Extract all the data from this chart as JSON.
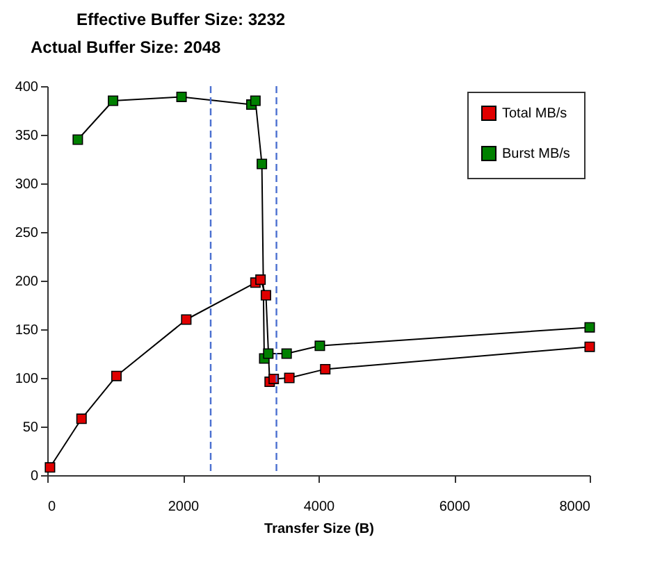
{
  "chart_data": {
    "type": "line",
    "xlabel": "Transfer Size (B)",
    "annotations": [
      "Effective Buffer Size: 3232",
      "Actual Buffer Size: 2048"
    ],
    "xlim": [
      0,
      8000
    ],
    "xticks": [
      0,
      2000,
      4000,
      6000,
      8000
    ],
    "ylim": [
      0,
      400
    ],
    "yticks": [
      0,
      50,
      100,
      150,
      200,
      250,
      300,
      350,
      400
    ],
    "grid": false,
    "legend": "top right",
    "marker": "square",
    "line_style": "solid",
    "series": [
      {
        "name": "Total MB/s",
        "color": "#e00000",
        "x": [
          40,
          505,
          1020,
          2050,
          3070,
          3145,
          3225,
          3280,
          3340,
          3570,
          4100,
          8000
        ],
        "values": [
          8,
          58,
          102,
          160,
          198,
          201,
          185,
          96,
          99,
          100,
          109,
          132
        ]
      },
      {
        "name": "Burst MB/s",
        "color": "#008000",
        "x": [
          450,
          970,
          1980,
          3010,
          3070,
          3165,
          3200,
          3260,
          3530,
          4020,
          8000
        ],
        "values": [
          345,
          385,
          389,
          381,
          385,
          320,
          120,
          125,
          125,
          133,
          152
        ]
      }
    ],
    "ref_lines": [
      {
        "axis": "x",
        "value": 2410,
        "color": "#4a6fd0",
        "line_style": "dashed"
      },
      {
        "axis": "x",
        "value": 3380,
        "color": "#4a6fd0",
        "line_style": "dashed"
      }
    ]
  }
}
